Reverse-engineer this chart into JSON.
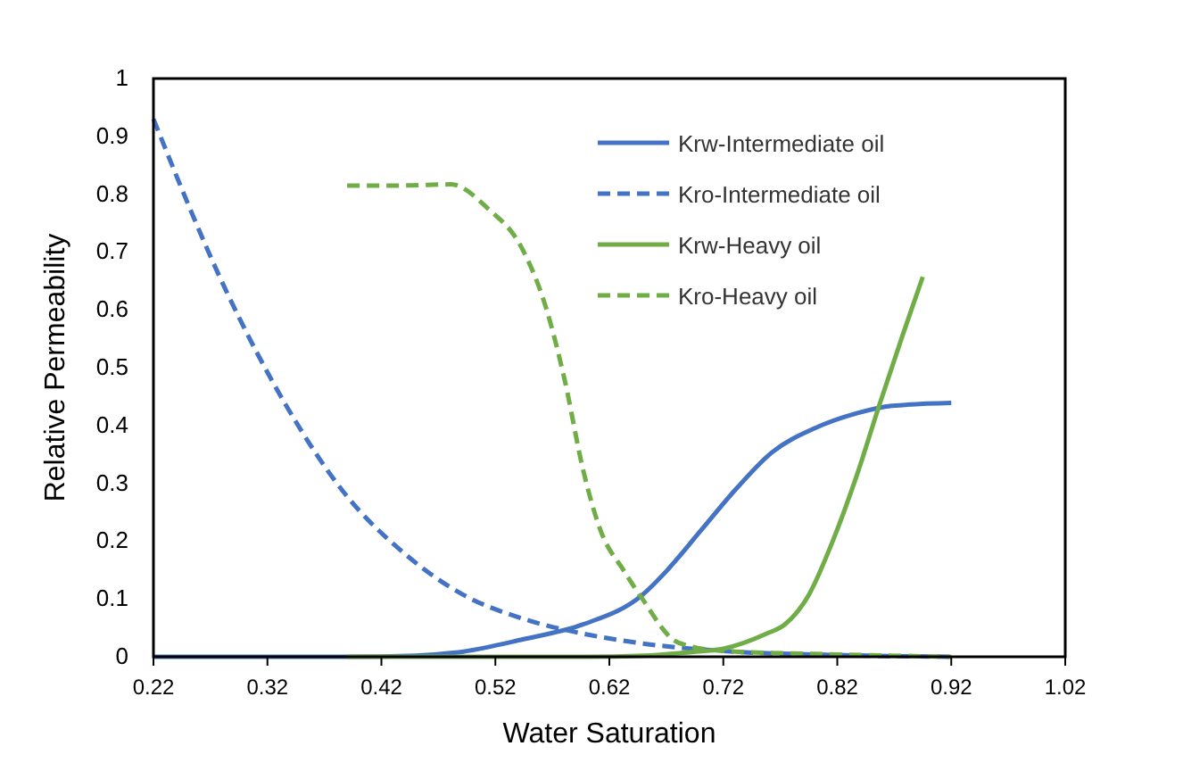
{
  "chart_data": {
    "type": "line",
    "xlabel": "Water Saturation",
    "ylabel": "Relative Permeability",
    "xlim": [
      0.22,
      1.02
    ],
    "xticks": [
      0.22,
      0.32,
      0.42,
      0.52,
      0.62,
      0.72,
      0.82,
      0.92,
      1.02
    ],
    "ylim": [
      0,
      1
    ],
    "yticks": [
      0,
      0.1,
      0.2,
      0.3,
      0.4,
      0.5,
      0.6,
      0.7,
      0.8,
      0.9,
      1
    ],
    "legend": "top right",
    "series": [
      {
        "name": "Krw-Intermediate oil",
        "color": "#4472c4",
        "line_style": "solid",
        "x": [
          0.22,
          0.3,
          0.39,
          0.45,
          0.492,
          0.544,
          0.597,
          0.649,
          0.67,
          0.701,
          0.732,
          0.763,
          0.8,
          0.837,
          0.868,
          0.92
        ],
        "values": [
          0,
          0,
          0,
          0.002,
          0.009,
          0.03,
          0.056,
          0.107,
          0.148,
          0.22,
          0.292,
          0.354,
          0.395,
          0.421,
          0.434,
          0.439
        ]
      },
      {
        "name": "Kro-Intermediate oil",
        "color": "#4472c4",
        "line_style": "dashed",
        "x": [
          0.22,
          0.284,
          0.336,
          0.388,
          0.44,
          0.492,
          0.544,
          0.597,
          0.649,
          0.72,
          0.82,
          0.92
        ],
        "values": [
          0.93,
          0.632,
          0.436,
          0.282,
          0.179,
          0.107,
          0.066,
          0.04,
          0.023,
          0.01,
          0.003,
          0
        ]
      },
      {
        "name": "Krw-Heavy oil",
        "color": "#70ad47",
        "line_style": "solid",
        "x": [
          0.39,
          0.5,
          0.6,
          0.65,
          0.696,
          0.72,
          0.758,
          0.774,
          0.795,
          0.816,
          0.837,
          0.857,
          0.878,
          0.895
        ],
        "values": [
          0,
          0,
          0,
          0.002,
          0.009,
          0.014,
          0.04,
          0.056,
          0.107,
          0.2,
          0.313,
          0.436,
          0.56,
          0.657
        ]
      },
      {
        "name": "Kro-Heavy oil",
        "color": "#70ad47",
        "line_style": "dashed",
        "x": [
          0.39,
          0.44,
          0.481,
          0.513,
          0.544,
          0.565,
          0.581,
          0.597,
          0.612,
          0.633,
          0.649,
          0.68,
          0.72,
          0.82,
          0.92
        ],
        "values": [
          0.815,
          0.815,
          0.817,
          0.776,
          0.704,
          0.6,
          0.477,
          0.323,
          0.22,
          0.148,
          0.1,
          0.025,
          0.01,
          0.004,
          0
        ]
      }
    ]
  }
}
